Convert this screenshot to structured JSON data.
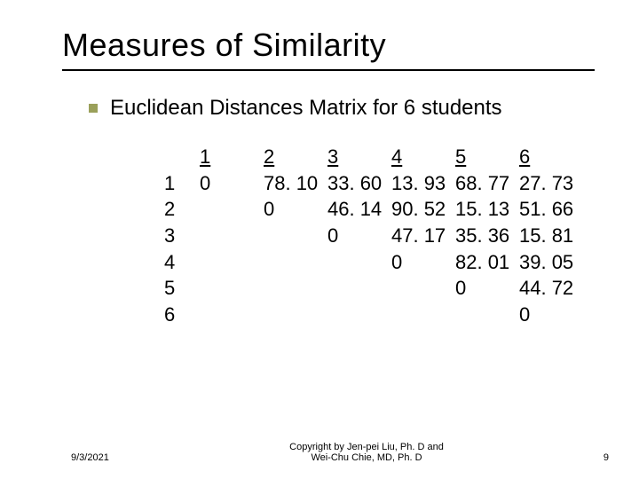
{
  "title": "Measures of Similarity",
  "bullet": "Euclidean Distances Matrix for 6 students",
  "colors": {
    "bullet_square": "#9aa05a",
    "rule": "#000000",
    "text": "#000000",
    "background": "#ffffff"
  },
  "matrix": {
    "col_labels": [
      "1",
      "2",
      "3",
      "4",
      "5",
      "6"
    ],
    "row_labels": [
      "1",
      "2",
      "3",
      "4",
      "5",
      "6"
    ],
    "cells": [
      [
        "0",
        "78. 10",
        "33. 60",
        "13. 93",
        "68. 77",
        "27. 73"
      ],
      [
        "",
        "0",
        "46. 14",
        "90. 52",
        "15. 13",
        "51. 66"
      ],
      [
        "",
        "",
        "0",
        "47. 17",
        "35. 36",
        "15. 81"
      ],
      [
        "",
        "",
        "",
        "0",
        "82. 01",
        "39. 05"
      ],
      [
        "",
        "",
        "",
        "",
        "0",
        "44. 72"
      ],
      [
        "",
        "",
        "",
        "",
        "",
        "0"
      ]
    ]
  },
  "footer": {
    "date": "9/3/2021",
    "copyright_line1": "Copyright by Jen-pei Liu, Ph. D and",
    "copyright_line2": "Wei-Chu Chie, MD, Ph. D",
    "page_number": "9"
  },
  "typography": {
    "title_fontsize": 36,
    "bullet_fontsize": 24,
    "matrix_fontsize": 22,
    "footer_fontsize": 11,
    "font_family": "Verdana"
  }
}
